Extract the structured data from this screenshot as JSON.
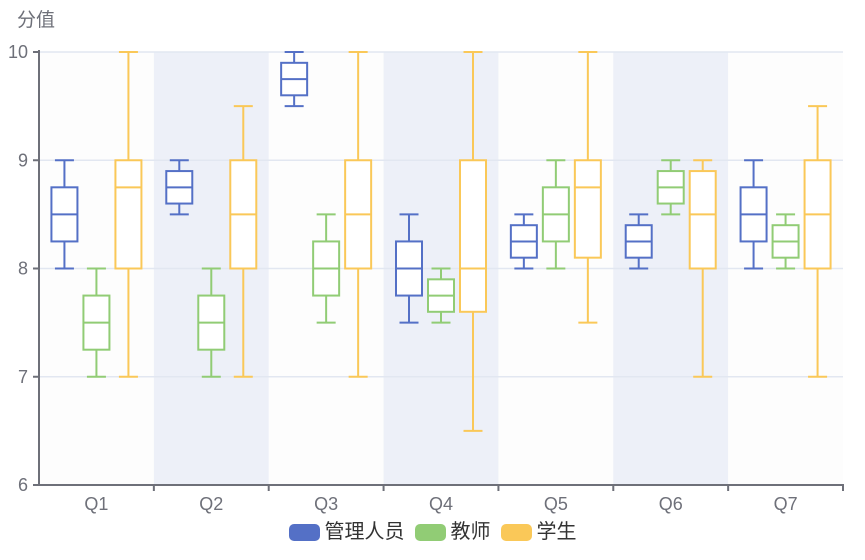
{
  "chart_data": {
    "type": "boxplot",
    "title": "分值",
    "categories": [
      "Q1",
      "Q2",
      "Q3",
      "Q4",
      "Q5",
      "Q6",
      "Q7"
    ],
    "xlabel": "",
    "ylabel": "分值",
    "ylim": [
      6,
      10
    ],
    "yticks": [
      6,
      7,
      8,
      9,
      10
    ],
    "grid": true,
    "legend_position": "bottom",
    "series": [
      {
        "name": "管理人员",
        "key": "admin-staff",
        "color": "#5470C6",
        "boxes": [
          [
            8.0,
            8.25,
            8.5,
            8.75,
            9.0
          ],
          [
            8.5,
            8.6,
            8.75,
            8.9,
            9.0
          ],
          [
            9.5,
            9.6,
            9.75,
            9.9,
            10.0
          ],
          [
            7.5,
            7.75,
            8.0,
            8.25,
            8.5
          ],
          [
            8.0,
            8.1,
            8.25,
            8.4,
            8.5
          ],
          [
            8.0,
            8.1,
            8.25,
            8.4,
            8.5
          ],
          [
            8.0,
            8.25,
            8.5,
            8.75,
            9.0
          ]
        ]
      },
      {
        "name": "教师",
        "key": "teachers",
        "color": "#91CC75",
        "boxes": [
          [
            7.0,
            7.25,
            7.5,
            7.75,
            8.0
          ],
          [
            7.0,
            7.25,
            7.5,
            7.75,
            8.0
          ],
          [
            7.5,
            7.75,
            8.0,
            8.25,
            8.5
          ],
          [
            7.5,
            7.6,
            7.75,
            7.9,
            8.0
          ],
          [
            8.0,
            8.25,
            8.5,
            8.75,
            9.0
          ],
          [
            8.5,
            8.6,
            8.75,
            8.9,
            9.0
          ],
          [
            8.0,
            8.1,
            8.25,
            8.4,
            8.5
          ]
        ]
      },
      {
        "name": "学生",
        "key": "students",
        "color": "#FAC858",
        "boxes": [
          [
            7.0,
            8.0,
            8.75,
            9.0,
            10.0
          ],
          [
            7.0,
            8.0,
            8.5,
            9.0,
            9.5
          ],
          [
            7.0,
            8.0,
            8.5,
            9.0,
            10.0
          ],
          [
            6.5,
            7.6,
            8.0,
            9.0,
            10.0
          ],
          [
            7.5,
            8.1,
            8.75,
            9.0,
            10.0
          ],
          [
            7.0,
            8.0,
            8.5,
            8.9,
            9.0
          ],
          [
            7.0,
            8.0,
            8.5,
            9.0,
            9.5
          ]
        ]
      }
    ],
    "style": {
      "axis_label_color": "#6E7079",
      "axis_line_color": "#6E7079",
      "grid_line_color": "#E2E7F1",
      "band_color_light": "rgba(250,250,250,0.45)",
      "band_color_dark": "rgba(212,220,238,0.42)",
      "box_fill": "#FFFFFF",
      "legend_text_color": "#333333"
    }
  }
}
